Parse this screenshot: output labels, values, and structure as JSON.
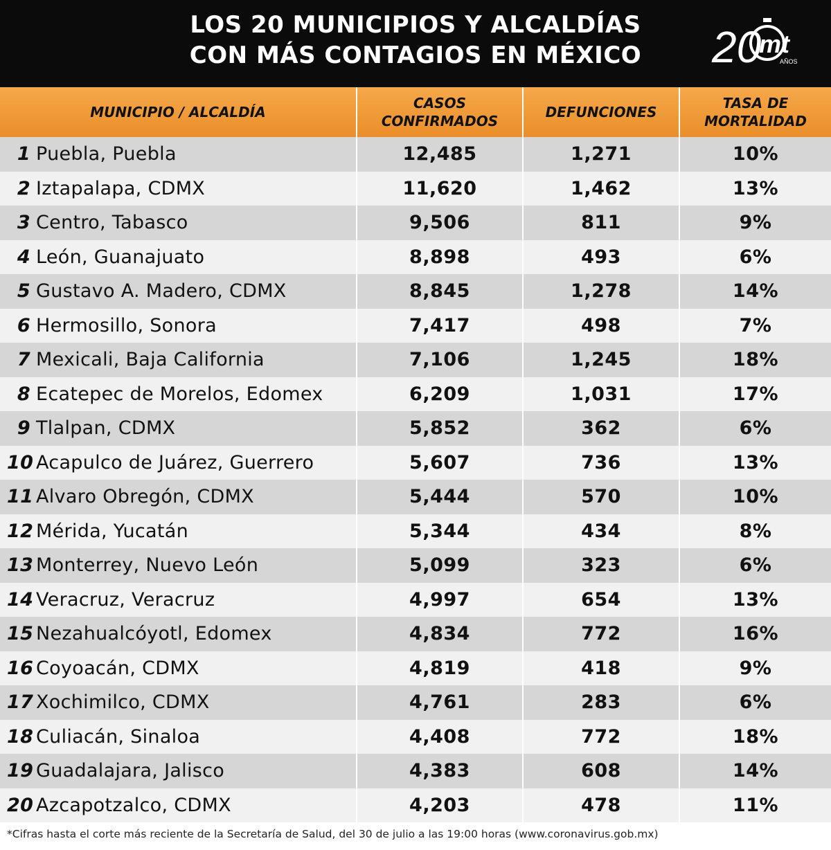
{
  "header": {
    "title_line1": "LOS 20 MUNICIPIOS Y ALCALDÍAS",
    "title_line2": "CON MÁS CONTAGIOS EN MÉXICO",
    "logo_number": "20",
    "logo_text": "mt",
    "logo_sub": "AÑOS"
  },
  "chart_data": {
    "type": "table",
    "columns": [
      "MUNICIPIO / ALCALDÍA",
      "CASOS CONFIRMADOS",
      "DEFUNCIONES",
      "TASA DE MORTALIDAD"
    ],
    "rows": [
      {
        "rank": "1",
        "name": "Puebla, Puebla",
        "cases": "12,485",
        "deaths": "1,271",
        "rate": "10%"
      },
      {
        "rank": "2",
        "name": "Iztapalapa, CDMX",
        "cases": "11,620",
        "deaths": "1,462",
        "rate": "13%"
      },
      {
        "rank": "3",
        "name": "Centro, Tabasco",
        "cases": "9,506",
        "deaths": "811",
        "rate": "9%"
      },
      {
        "rank": "4",
        "name": "León, Guanajuato",
        "cases": "8,898",
        "deaths": "493",
        "rate": "6%"
      },
      {
        "rank": "5",
        "name": "Gustavo A. Madero, CDMX",
        "cases": "8,845",
        "deaths": "1,278",
        "rate": "14%"
      },
      {
        "rank": "6",
        "name": "Hermosillo, Sonora",
        "cases": "7,417",
        "deaths": "498",
        "rate": "7%"
      },
      {
        "rank": "7",
        "name": "Mexicali, Baja California",
        "cases": "7,106",
        "deaths": "1,245",
        "rate": "18%"
      },
      {
        "rank": "8",
        "name": "Ecatepec de Morelos, Edomex",
        "cases": "6,209",
        "deaths": "1,031",
        "rate": "17%"
      },
      {
        "rank": "9",
        "name": "Tlalpan, CDMX",
        "cases": "5,852",
        "deaths": "362",
        "rate": "6%"
      },
      {
        "rank": "10",
        "name": "Acapulco de Juárez, Guerrero",
        "cases": "5,607",
        "deaths": "736",
        "rate": "13%"
      },
      {
        "rank": "11",
        "name": "Alvaro Obregón, CDMX",
        "cases": "5,444",
        "deaths": "570",
        "rate": "10%"
      },
      {
        "rank": "12",
        "name": "Mérida, Yucatán",
        "cases": "5,344",
        "deaths": "434",
        "rate": "8%"
      },
      {
        "rank": "13",
        "name": "Monterrey, Nuevo León",
        "cases": "5,099",
        "deaths": "323",
        "rate": "6%"
      },
      {
        "rank": "14",
        "name": "Veracruz, Veracruz",
        "cases": "4,997",
        "deaths": "654",
        "rate": "13%"
      },
      {
        "rank": "15",
        "name": "Nezahualcóyotl, Edomex",
        "cases": "4,834",
        "deaths": "772",
        "rate": "16%"
      },
      {
        "rank": "16",
        "name": "Coyoacán, CDMX",
        "cases": "4,819",
        "deaths": "418",
        "rate": "9%"
      },
      {
        "rank": "17",
        "name": "Xochimilco, CDMX",
        "cases": "4,761",
        "deaths": "283",
        "rate": "6%"
      },
      {
        "rank": "18",
        "name": "Culiacán, Sinaloa",
        "cases": "4,408",
        "deaths": "772",
        "rate": "18%"
      },
      {
        "rank": "19",
        "name": "Guadalajara, Jalisco",
        "cases": "4,383",
        "deaths": "608",
        "rate": "14%"
      },
      {
        "rank": "20",
        "name": "Azcapotzalco, CDMX",
        "cases": "4,203",
        "deaths": "478",
        "rate": "11%"
      }
    ]
  },
  "footnote": "*Cifras hasta el corte más reciente de la Secretaría de Salud, del 30 de julio a las 19:00 horas (www.coronavirus.gob.mx)",
  "colors": {
    "header_bg": "#0b0b0b",
    "column_header": "#f0992f",
    "row_dark": "#d6d6d6",
    "row_light": "#f1f1f1"
  }
}
